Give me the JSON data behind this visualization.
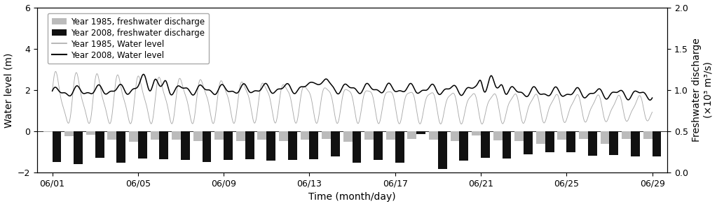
{
  "xlabel": "Time (month/day)",
  "ylabel_left": "Water level (m)",
  "ylabel_right": "Freshwater discharge\n(×10³ m³/s)",
  "ylim_left": [
    -2.0,
    6.0
  ],
  "ylim_right": [
    0.0,
    2.0
  ],
  "yticks_left": [
    -2.0,
    0.0,
    2.0,
    4.0,
    6.0
  ],
  "yticks_right": [
    0.0,
    0.5,
    1.0,
    1.5,
    2.0
  ],
  "xtick_labels": [
    "06/01",
    "06/05",
    "06/09",
    "06/13",
    "06/17",
    "06/21",
    "06/25",
    "06/29"
  ],
  "xtick_positions": [
    0,
    4,
    8,
    12,
    16,
    20,
    24,
    28
  ],
  "bar_color_1985": "#bbbbbb",
  "bar_color_2008": "#111111",
  "line_color_1985": "#aaaaaa",
  "line_color_2008": "#000000",
  "fd_1985": [
    0.05,
    0.22,
    0.16,
    0.42,
    0.52,
    0.4,
    0.42,
    0.46,
    0.42,
    0.46,
    0.42,
    0.46,
    0.4,
    0.36,
    0.52,
    0.42,
    0.42,
    0.36,
    0.4,
    0.46,
    0.2,
    0.44,
    0.48,
    0.62,
    0.42,
    0.36,
    0.6,
    0.36,
    0.38
  ],
  "fd_2008": [
    1.48,
    1.58,
    1.28,
    1.52,
    1.32,
    1.36,
    1.38,
    1.48,
    1.4,
    1.36,
    1.42,
    1.4,
    1.36,
    1.22,
    1.52,
    1.38,
    1.52,
    0.12,
    1.82,
    1.42,
    1.28,
    1.32,
    1.12,
    1.02,
    1.02,
    1.18,
    1.15,
    1.22,
    1.22
  ],
  "background_color": "#ffffff",
  "legend_fontsize": 8.5,
  "axis_fontsize": 10
}
